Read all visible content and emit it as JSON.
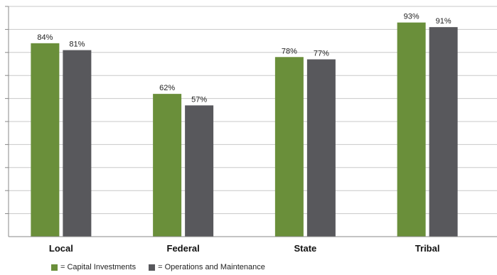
{
  "chart_data": {
    "type": "bar",
    "categories": [
      "Local",
      "Federal",
      "State",
      "Tribal"
    ],
    "series": [
      {
        "name": "Capital Investments",
        "values": [
          84,
          62,
          78,
          93
        ],
        "labels": [
          "84%",
          "62%",
          "78%",
          "93%"
        ],
        "color": "#6a8f3a"
      },
      {
        "name": "Operations and Maintenance",
        "values": [
          81,
          57,
          77,
          91
        ],
        "labels": [
          "81%",
          "57%",
          "77%",
          "91%"
        ],
        "color": "#58585c"
      }
    ],
    "ylim": [
      0,
      100
    ],
    "grid": true,
    "legend_placement": "bottom-left",
    "legend_prefix": "= "
  }
}
